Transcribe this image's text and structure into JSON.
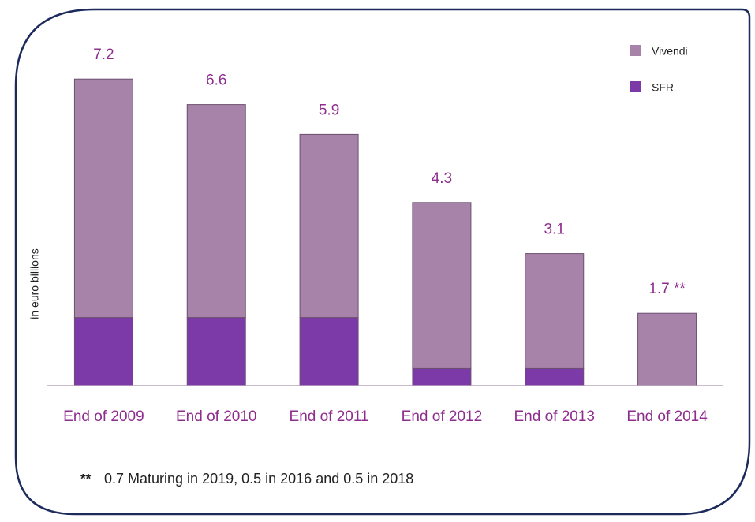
{
  "chart_data": {
    "type": "stacked_bar",
    "y_label": "in euro billions",
    "categories": [
      "End of 2009",
      "End of 2010",
      "End of 2011",
      "End of 2012",
      "End of 2013",
      "End of 2014"
    ],
    "series": [
      {
        "name": "SFR",
        "color": "#7b3aa8",
        "values": [
          1.6,
          1.6,
          1.6,
          0.4,
          0.4,
          0
        ]
      },
      {
        "name": "Vivendi",
        "color": "#a883a9",
        "values": [
          5.6,
          5.0,
          4.3,
          3.9,
          2.7,
          1.7
        ]
      }
    ],
    "totals": [
      7.2,
      6.6,
      5.9,
      4.3,
      3.1,
      1.7
    ],
    "value_labels": [
      "7.2",
      "6.6",
      "5.9",
      "4.3",
      "3.1",
      "1.7 **"
    ],
    "ylim": [
      0,
      8
    ],
    "footnote_marker": "**",
    "footnote": "0.7 Maturing in 2019, 0.5 in 2016 and 0.5 in 2018"
  }
}
